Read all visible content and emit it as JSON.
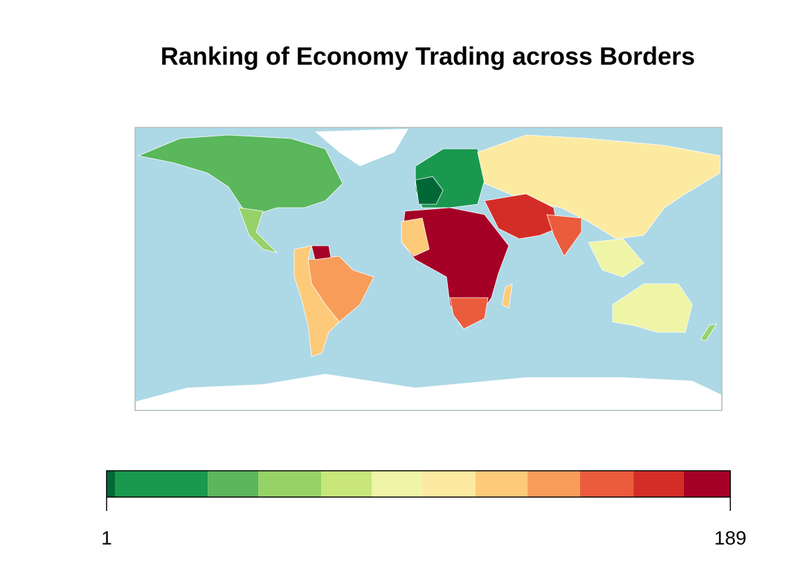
{
  "title": "Ranking of Economy   Trading across Borders",
  "legend": {
    "lim": [
      1,
      189
    ],
    "ticks": [
      1,
      189
    ],
    "breaks": [
      1,
      3.5,
      31.5,
      46.7,
      65.7,
      80.9,
      96.1,
      112.2,
      127.9,
      143.7,
      159.8,
      175,
      189
    ],
    "colors": [
      "#006837",
      "#1a9850",
      "#5ab75c",
      "#97d268",
      "#c8e67a",
      "#eef5a6",
      "#fdeaa1",
      "#fdca79",
      "#f89d59",
      "#ea5c3c",
      "#d42d27",
      "#a50026"
    ]
  }
}
